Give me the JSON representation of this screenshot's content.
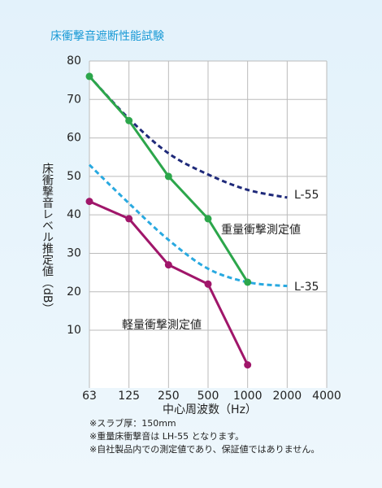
{
  "chart_data": {
    "type": "line",
    "title": "床衝撃音遮断性能試験",
    "y_label": "床衝撃音レベル推定値（dB）",
    "x_label": "中心周波数（Hz）",
    "categories": [
      "63",
      "125",
      "250",
      "500",
      "1000",
      "2000",
      "4000"
    ],
    "ylim": [
      -5,
      80
    ],
    "yticks": [
      10,
      20,
      30,
      40,
      50,
      60,
      70,
      80
    ],
    "grid": true,
    "series": [
      {
        "name": "L-55",
        "color": "#1f2a7a",
        "dashed": true,
        "marker": false,
        "values": [
          76,
          65,
          56,
          50.5,
          46.5,
          44.5,
          null
        ]
      },
      {
        "name": "L-35",
        "color": "#29a9e0",
        "dashed": true,
        "marker": false,
        "values": [
          53,
          43,
          33.5,
          26,
          22.5,
          21.5,
          null
        ]
      },
      {
        "name": "重量衝撃測定値",
        "color": "#2ca64b",
        "dashed": false,
        "marker": true,
        "values": [
          76,
          64.5,
          50,
          39,
          22.5,
          null,
          null
        ]
      },
      {
        "name": "軽量衝撃測定値",
        "color": "#a0166a",
        "dashed": false,
        "marker": true,
        "values": [
          43.5,
          39,
          27,
          22,
          1,
          null,
          null
        ]
      }
    ],
    "notes": [
      "※スラブ厚：150mm",
      "※重量床衝撃音は LH-55 となります。",
      "※自社製品内での測定値であり、保証値ではありません。"
    ]
  }
}
